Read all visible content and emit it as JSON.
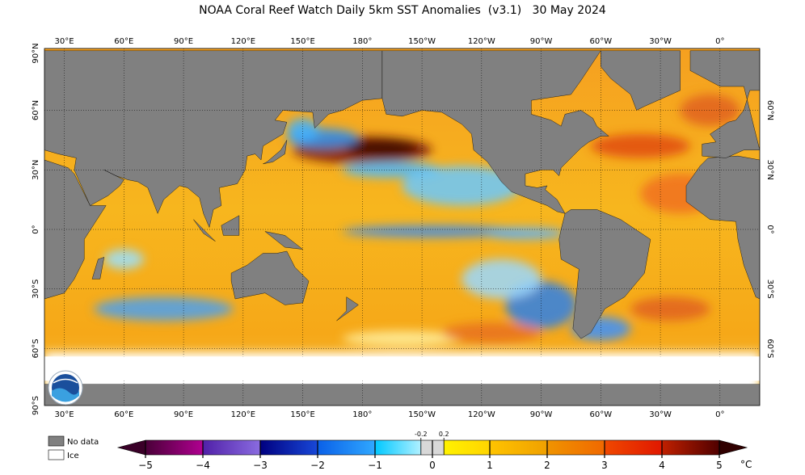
{
  "title": "NOAA Coral Reef Watch Daily 5km SST Anomalies  (v3.1)   30 May 2024",
  "top_lon_labels": [
    "30°E",
    "60°E",
    "90°E",
    "120°E",
    "150°E",
    "180°",
    "150°W",
    "120°W",
    "90°W",
    "60°W",
    "30°W",
    "0°"
  ],
  "bottom_lon_labels": [
    "30°E",
    "60°E",
    "90°E",
    "120°E",
    "150°E",
    "180°",
    "150°W",
    "120°W",
    "90°W",
    "60°W",
    "30°W",
    "0°"
  ],
  "left_lat_labels": [
    "90°N",
    "60°N",
    "30°N",
    "0°",
    "30°S",
    "60°S",
    "90°S"
  ],
  "right_lat_labels": [
    "60°N",
    "30°N",
    "0°",
    "30°S",
    "60°S"
  ],
  "legend": [
    {
      "label": "No data",
      "color": "#808080"
    },
    {
      "label": "Ice",
      "color": "#ffffff"
    }
  ],
  "colorbar": {
    "ticks": [
      {
        "value": -5,
        "label": "−5"
      },
      {
        "value": -4,
        "label": "−4"
      },
      {
        "value": -3,
        "label": "−3"
      },
      {
        "value": -2,
        "label": "−2"
      },
      {
        "value": -1,
        "label": "−1"
      },
      0,
      1,
      2,
      3,
      4,
      5
    ],
    "minor_ticks": [
      -0.2,
      0.2
    ],
    "unit": "°C"
  }
}
